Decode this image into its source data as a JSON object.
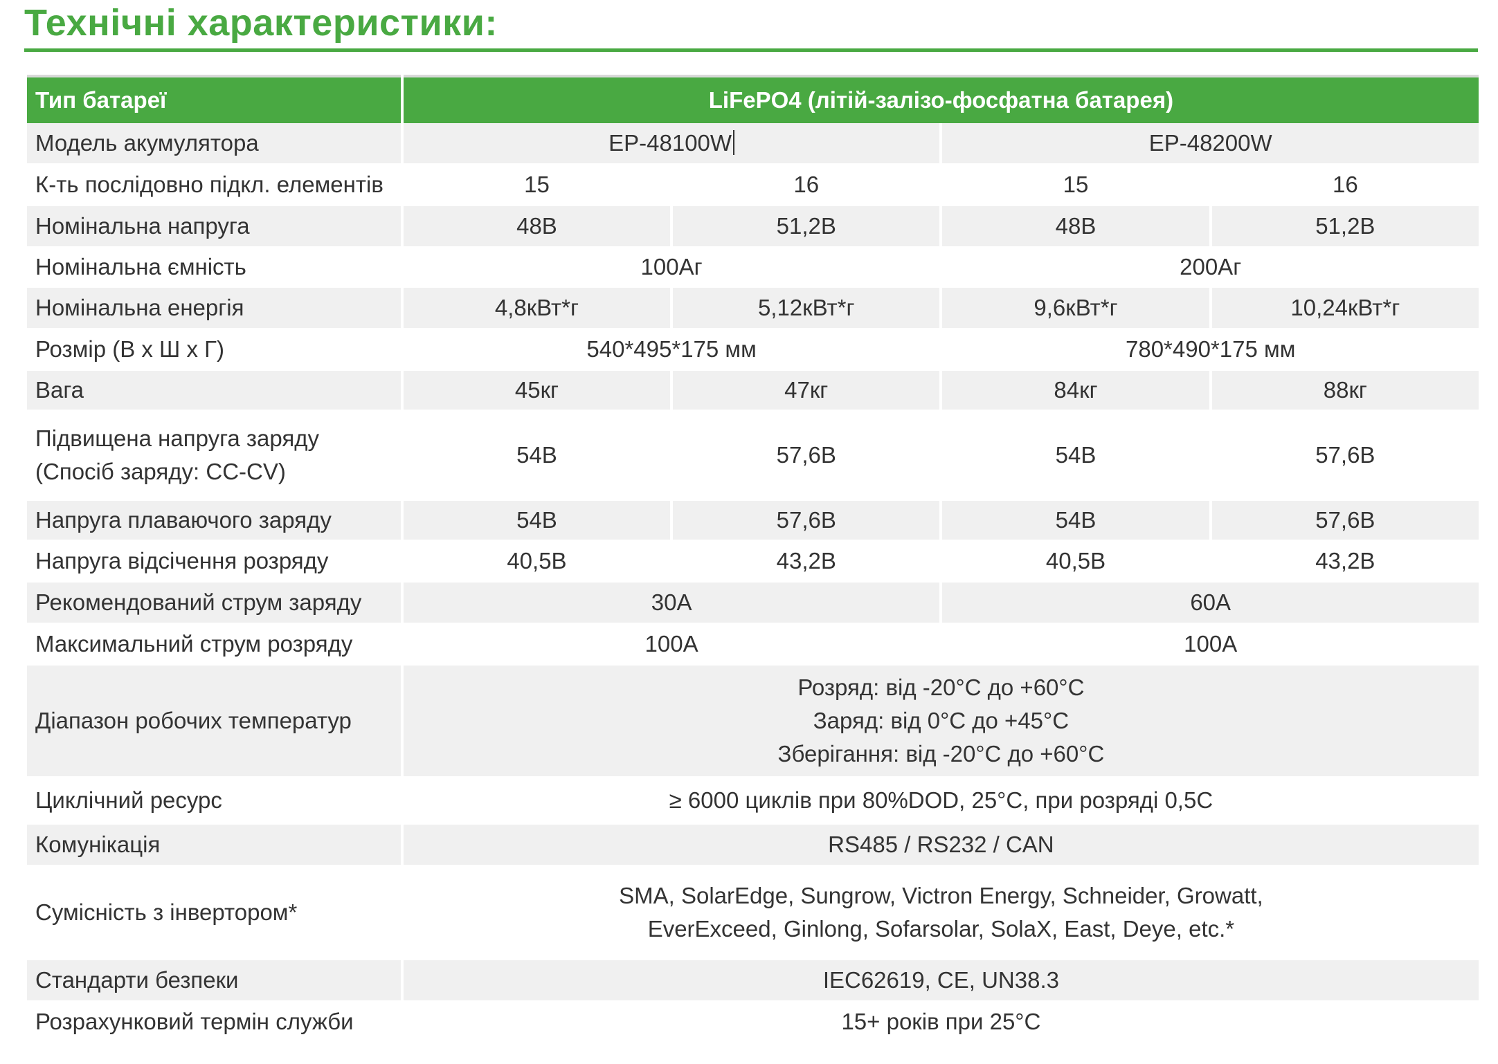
{
  "title": "Технічні характеристики:",
  "header": {
    "label": "Тип батареї",
    "value": "LiFePO4 (літій-залізо-фосфатна батарея)"
  },
  "rows": {
    "model": {
      "label": "Модель акумулятора",
      "v1": "EP-48100W",
      "v2": "EP-48200W"
    },
    "cells": {
      "label": "К-ть послідовно підкл. елементів",
      "v1": "15",
      "v2": "16",
      "v3": "15",
      "v4": "16"
    },
    "voltage": {
      "label": "Номінальна напруга",
      "v1": "48В",
      "v2": "51,2В",
      "v3": "48В",
      "v4": "51,2В"
    },
    "capacity": {
      "label": "Номінальна ємність",
      "v1": "100Аг",
      "v2": "200Аг"
    },
    "energy": {
      "label": "Номінальна енергія",
      "v1": "4,8кВт*г",
      "v2": "5,12кВт*г",
      "v3": "9,6кВт*г",
      "v4": "10,24кВт*г"
    },
    "size": {
      "label": "Розмір (В х Ш х Г)",
      "v1": "540*495*175 мм",
      "v2": "780*490*175 мм"
    },
    "weight": {
      "label": "Вага",
      "v1": "45кг",
      "v2": "47кг",
      "v3": "84кг",
      "v4": "88кг"
    },
    "boost": {
      "label_line1": "Підвищена напруга заряду",
      "label_line2": "(Спосіб заряду: CC-CV)",
      "v1": "54В",
      "v2": "57,6В",
      "v3": "54В",
      "v4": "57,6В"
    },
    "float": {
      "label": "Напруга плаваючого заряду",
      "v1": "54В",
      "v2": "57,6В",
      "v3": "54В",
      "v4": "57,6В"
    },
    "cutoff": {
      "label": "Напруга відсічення розряду",
      "v1": "40,5В",
      "v2": "43,2В",
      "v3": "40,5В",
      "v4": "43,2В"
    },
    "charge_current": {
      "label": "Рекомендований струм заряду",
      "v1": "30А",
      "v2": "60А"
    },
    "discharge_current": {
      "label": "Максимальний струм розряду",
      "v1": "100А",
      "v2": "100А"
    },
    "temperature": {
      "label": "Діапазон робочих температур",
      "line1": "Розряд: від -20°C до +60°C",
      "line2": "Заряд: від 0°C до +45°C",
      "line3": "Зберігання: від -20°C до +60°C"
    },
    "cycles": {
      "label": "Циклічний ресурс",
      "value": "≥ 6000 циклів при 80%DOD, 25°C, при розряді 0,5С"
    },
    "communication": {
      "label": "Комунікація",
      "value": "RS485 / RS232 / CAN"
    },
    "compat": {
      "label": "Сумісність з інвертором*",
      "line1": "SMA, SolarEdge, Sungrow,  Victron Energy, Schneider, Growatt,",
      "line2": "EverExceed, Ginlong, Sofarsolar, SolaX, East, Deye, etc.*"
    },
    "standards": {
      "label": "Стандарти безпеки",
      "value": "IEC62619, CE, UN38.3"
    },
    "lifetime": {
      "label": "Розрахунковий термін служби",
      "value": "15+ років при 25°C"
    }
  },
  "colors": {
    "accent": "#49a942",
    "row_alt": "#f0f0f0",
    "text": "#333333"
  }
}
